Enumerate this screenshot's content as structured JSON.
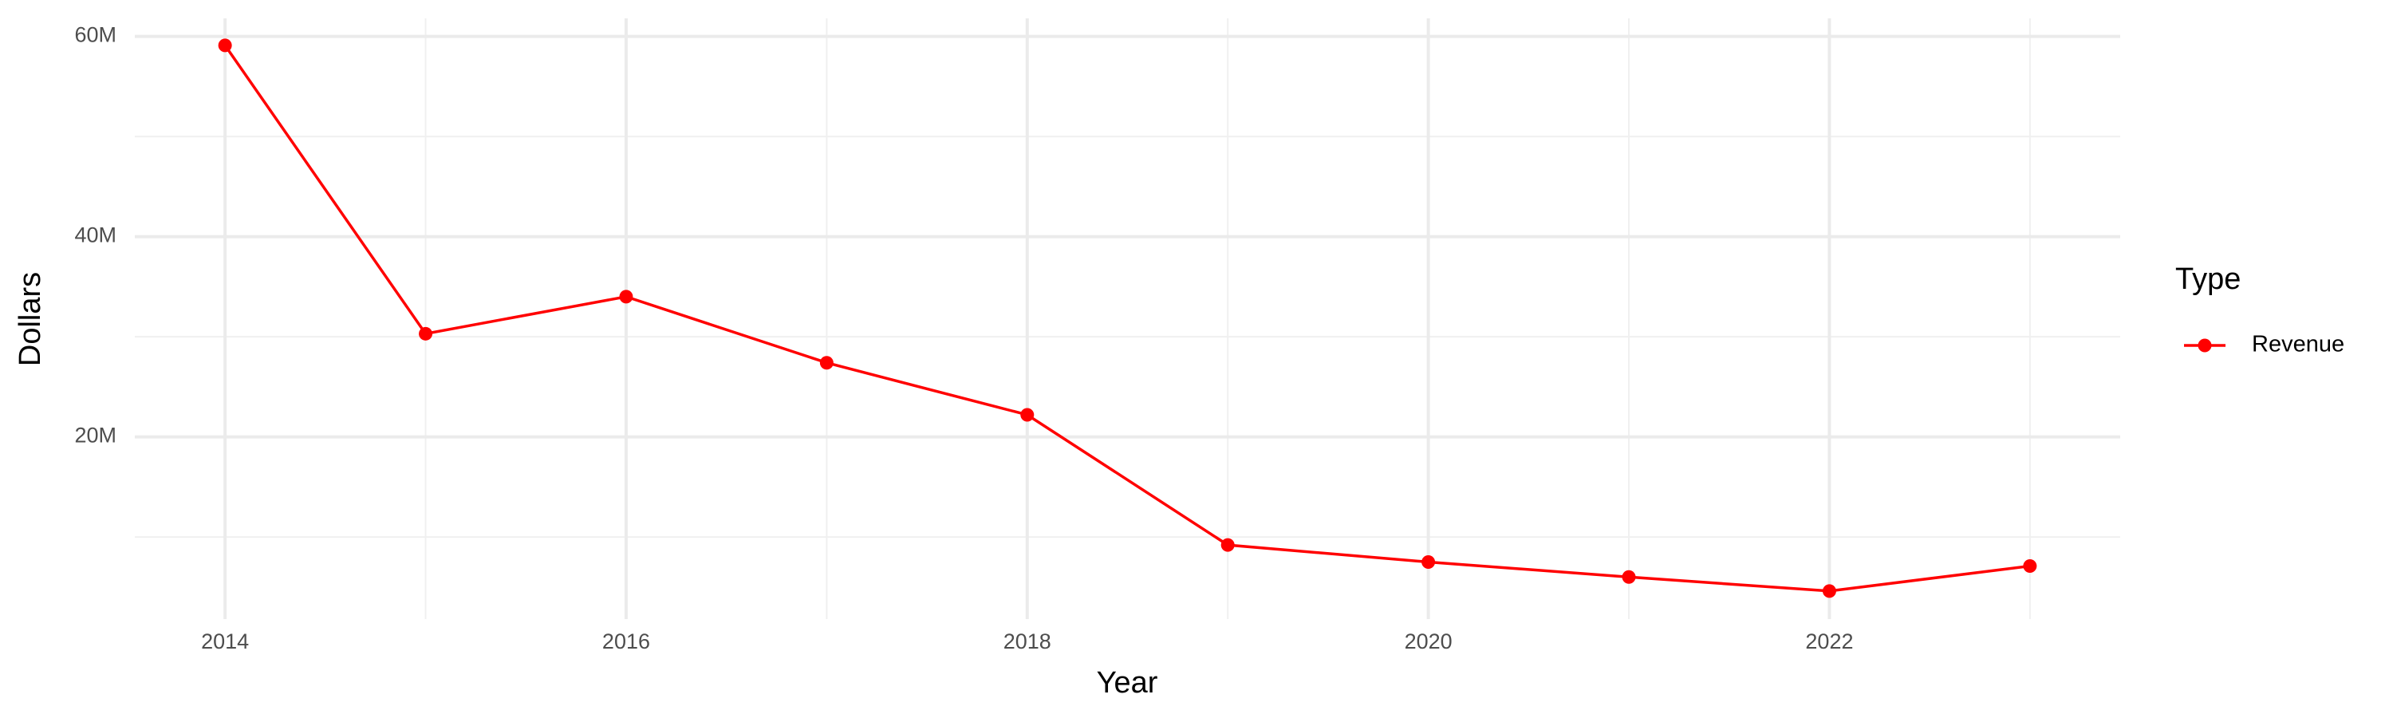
{
  "chart_data": {
    "type": "line",
    "x_label": "Year",
    "y_label": "Dollars",
    "legend_title": "Type",
    "legend": "right",
    "x": [
      2014,
      2015,
      2016,
      2017,
      2018,
      2019,
      2020,
      2021,
      2022,
      2023
    ],
    "series": [
      {
        "name": "Revenue",
        "color": "#ff0000",
        "values": [
          59100000,
          30300000,
          34000000,
          27400000,
          22200000,
          9200000,
          7500000,
          6000000,
          4600000,
          7100000
        ]
      }
    ],
    "xlim": [
      2013.55,
      2023.45
    ],
    "xticks": [
      2014,
      2016,
      2018,
      2020,
      2022
    ],
    "x_minor_ticks": [
      2015,
      2017,
      2019,
      2021,
      2023
    ],
    "ylim": [
      1800000,
      61800000
    ],
    "yticks": [
      {
        "value": 20000000,
        "label": "20M"
      },
      {
        "value": 40000000,
        "label": "40M"
      },
      {
        "value": 60000000,
        "label": "60M"
      }
    ],
    "y_minor_ticks": [
      10000000,
      30000000,
      50000000
    ],
    "grid": true
  }
}
